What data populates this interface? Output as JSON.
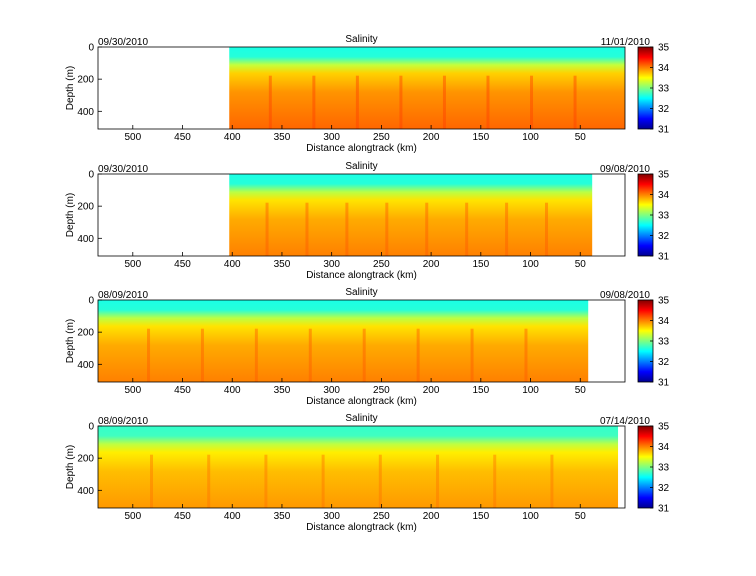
{
  "figure": {
    "colors": {
      "background": "#ffffff",
      "colormap": "jet",
      "palette": [
        "#00008f",
        "#0000ff",
        "#0080ff",
        "#00ffff",
        "#80ff80",
        "#ffff00",
        "#ff8000",
        "#ff0000",
        "#800000"
      ]
    }
  },
  "chart_data": [
    {
      "type": "heatmap",
      "title": "Salinity",
      "date_left": "09/30/2010",
      "date_right": "11/01/2010",
      "xlabel": "Distance alongtrack (km)",
      "ylabel": "Depth (m)",
      "xlim": [
        535,
        5
      ],
      "ylim": [
        0,
        510
      ],
      "y_reversed": true,
      "x_ticks": [
        500,
        450,
        400,
        350,
        300,
        250,
        200,
        150,
        100,
        50
      ],
      "y_ticks": [
        0,
        200,
        400
      ],
      "colorbar": {
        "range": [
          31,
          35
        ],
        "ticks": [
          31,
          32,
          33,
          34,
          35
        ]
      },
      "data_coverage_km": [
        403,
        5
      ],
      "surface_salinity_psu": 32.6,
      "deep_salinity_psu": 34.1
    },
    {
      "type": "heatmap",
      "title": "Salinity",
      "date_left": "09/30/2010",
      "date_right": "09/08/2010",
      "xlabel": "Distance alongtrack (km)",
      "ylabel": "Depth (m)",
      "xlim": [
        535,
        5
      ],
      "ylim": [
        0,
        510
      ],
      "y_reversed": true,
      "x_ticks": [
        500,
        450,
        400,
        350,
        300,
        250,
        200,
        150,
        100,
        50
      ],
      "y_ticks": [
        0,
        200,
        400
      ],
      "colorbar": {
        "range": [
          31,
          35
        ],
        "ticks": [
          31,
          32,
          33,
          34,
          35
        ]
      },
      "data_coverage_km": [
        403,
        38
      ],
      "surface_salinity_psu": 32.6,
      "deep_salinity_psu": 34.0
    },
    {
      "type": "heatmap",
      "title": "Salinity",
      "date_left": "08/09/2010",
      "date_right": "09/08/2010",
      "xlabel": "Distance alongtrack (km)",
      "ylabel": "Depth (m)",
      "xlim": [
        535,
        5
      ],
      "ylim": [
        0,
        510
      ],
      "y_reversed": true,
      "x_ticks": [
        500,
        450,
        400,
        350,
        300,
        250,
        200,
        150,
        100,
        50
      ],
      "y_ticks": [
        0,
        200,
        400
      ],
      "colorbar": {
        "range": [
          31,
          35
        ],
        "ticks": [
          31,
          32,
          33,
          34,
          35
        ]
      },
      "data_coverage_km": [
        535,
        42
      ],
      "surface_salinity_psu": 32.6,
      "deep_salinity_psu": 34.0
    },
    {
      "type": "heatmap",
      "title": "Salinity",
      "date_left": "08/09/2010",
      "date_right": "07/14/2010",
      "xlabel": "Distance alongtrack (km)",
      "ylabel": "Depth (m)",
      "xlim": [
        535,
        5
      ],
      "ylim": [
        0,
        510
      ],
      "y_reversed": true,
      "x_ticks": [
        500,
        450,
        400,
        350,
        300,
        250,
        200,
        150,
        100,
        50
      ],
      "y_ticks": [
        0,
        200,
        400
      ],
      "colorbar": {
        "range": [
          31,
          35
        ],
        "ticks": [
          31,
          32,
          33,
          34,
          35
        ]
      },
      "data_coverage_km": [
        535,
        12
      ],
      "surface_salinity_psu": 32.7,
      "deep_salinity_psu": 33.9
    }
  ]
}
